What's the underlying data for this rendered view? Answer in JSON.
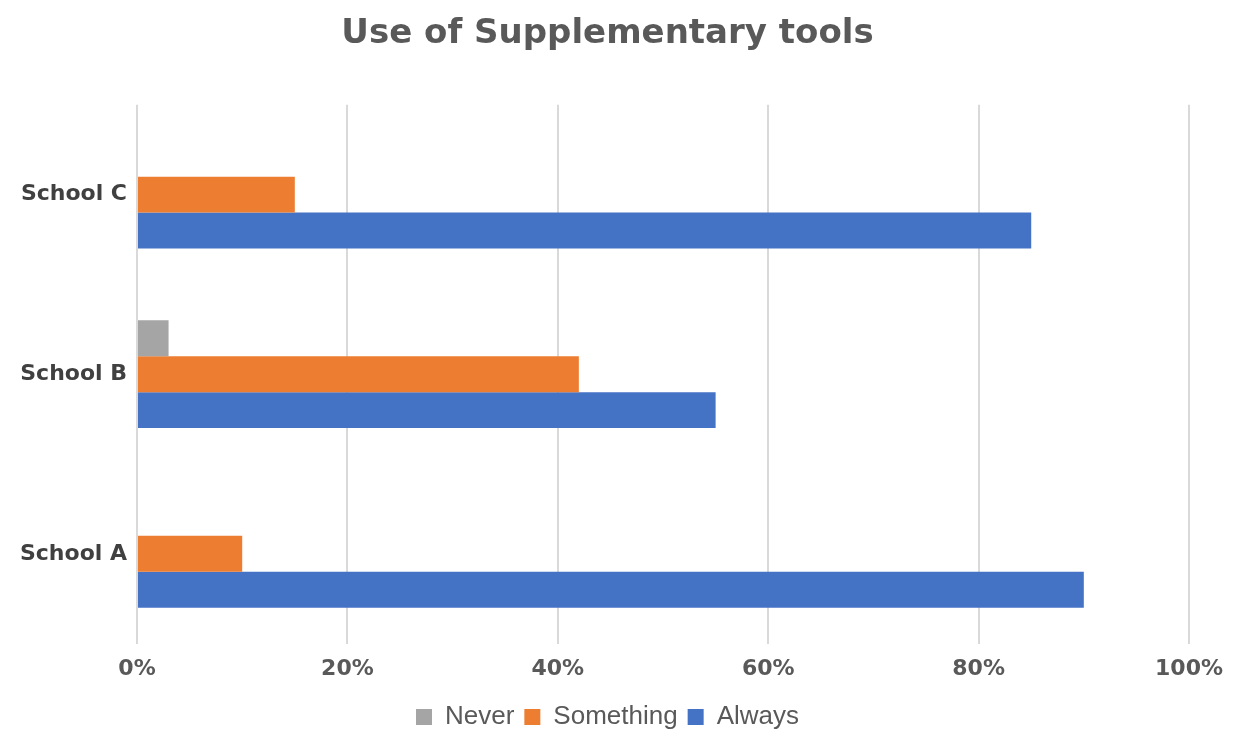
{
  "chart_data": {
    "type": "bar",
    "orientation": "horizontal",
    "title": "Use of Supplementary tools",
    "categories": [
      "School C",
      "School B",
      "School A"
    ],
    "series": [
      {
        "name": "Never",
        "color": "#a5a5a5",
        "values": [
          0,
          3,
          0
        ]
      },
      {
        "name": "Something",
        "color": "#ed7d31",
        "values": [
          15,
          42,
          10
        ]
      },
      {
        "name": "Always",
        "color": "#4472c4",
        "values": [
          85,
          55,
          90
        ]
      }
    ],
    "xlim": [
      0,
      100
    ],
    "xticks": [
      {
        "value": 0,
        "label": "0%"
      },
      {
        "value": 20,
        "label": "20%"
      },
      {
        "value": 40,
        "label": "40%"
      },
      {
        "value": 60,
        "label": "60%"
      },
      {
        "value": 80,
        "label": "80%"
      },
      {
        "value": 100,
        "label": "100%"
      }
    ],
    "grid": "x",
    "legend": "bottom"
  }
}
